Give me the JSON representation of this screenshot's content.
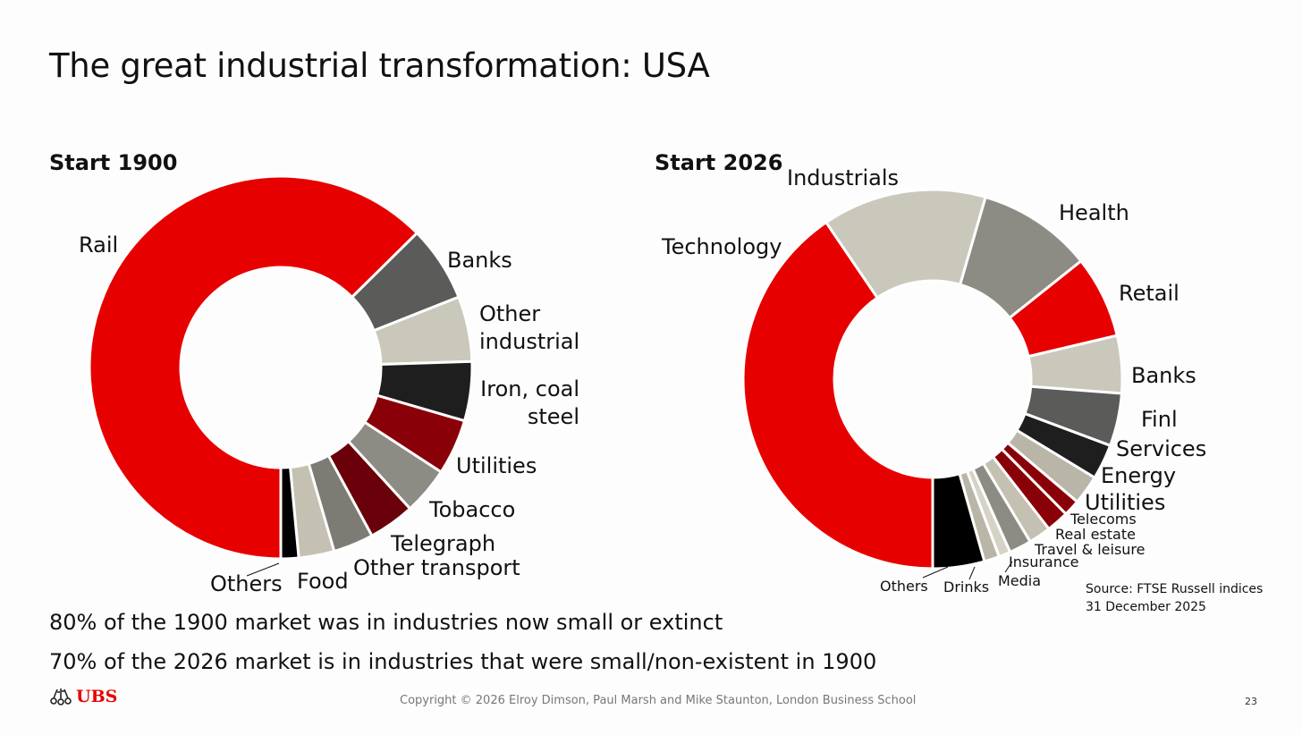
{
  "slide": {
    "title": "The great industrial transformation: USA",
    "note_1": "80% of the 1900 market was in industries now small or extinct",
    "note_2": "70% of the 2026 market is in industries that were small/non-existent in 1900",
    "source": "Source: FTSE Russell indices 31 December 2025",
    "logo": "UBS",
    "copyright": "Copyright © 2026 Elroy Dimson, Paul Marsh and Mike Staunton, London Business School",
    "page_number": "23"
  },
  "colors": {
    "red": "#e60000",
    "dark_gray": "#5b5c5a",
    "light_beige": "#cac8bb",
    "near_black": "#1e1e1e",
    "dark_red": "#8a0008",
    "medium_gray": "#8d8c84",
    "deep_red": "#6a0009",
    "gray": "#7c7b74",
    "black": "#000000"
  },
  "chart_data": [
    {
      "type": "donut",
      "title": "Start 1900",
      "unit": "percent of market",
      "segments": [
        {
          "label": "Rail",
          "value": 62.6,
          "color": "#e60000"
        },
        {
          "label": "Banks",
          "value": 6.4,
          "color": "#5b5c5a"
        },
        {
          "label": "Other industrial",
          "value": 5.5,
          "color": "#cac8bb"
        },
        {
          "label": "Iron, coal steel",
          "value": 5.0,
          "color": "#1e1e1e"
        },
        {
          "label": "Utilities",
          "value": 4.7,
          "color": "#8a0008"
        },
        {
          "label": "Tobacco",
          "value": 4.0,
          "color": "#8d8c84"
        },
        {
          "label": "Telegraph",
          "value": 3.9,
          "color": "#6a0009"
        },
        {
          "label": "Other transport",
          "value": 3.4,
          "color": "#7c7b74"
        },
        {
          "label": "Food",
          "value": 3.0,
          "color": "#c4c1b2"
        },
        {
          "label": "Others",
          "value": 1.5,
          "color": "#000000"
        }
      ]
    },
    {
      "type": "donut",
      "title": "Start 2026",
      "unit": "percent of market",
      "segments": [
        {
          "label": "Technology",
          "value": 40.5,
          "color": "#e60000"
        },
        {
          "label": "Industrials",
          "value": 14.0,
          "color": "#cac8bb"
        },
        {
          "label": "Health",
          "value": 9.8,
          "color": "#8d8c84"
        },
        {
          "label": "Retail",
          "value": 7.0,
          "color": "#e60000"
        },
        {
          "label": "Banks",
          "value": 4.9,
          "color": "#cac8bb"
        },
        {
          "label": "Finl Services",
          "value": 4.5,
          "color": "#5b5c5a"
        },
        {
          "label": "Energy",
          "value": 3.0,
          "color": "#1e1e1e"
        },
        {
          "label": "Utilities",
          "value": 2.5,
          "color": "#b9b6a8"
        },
        {
          "label": "Telecoms",
          "value": 1.4,
          "color": "#8a0008"
        },
        {
          "label": "Real estate",
          "value": 1.9,
          "color": "#8a0008"
        },
        {
          "label": "Travel & leisure",
          "value": 1.9,
          "color": "#c4c1b2"
        },
        {
          "label": "Insurance",
          "value": 1.9,
          "color": "#8d8c84"
        },
        {
          "label": "Media",
          "value": 1.0,
          "color": "#d6d3c6"
        },
        {
          "label": "Drinks",
          "value": 1.3,
          "color": "#b9b6a8"
        },
        {
          "label": "Others",
          "value": 4.4,
          "color": "#000000"
        }
      ]
    }
  ]
}
